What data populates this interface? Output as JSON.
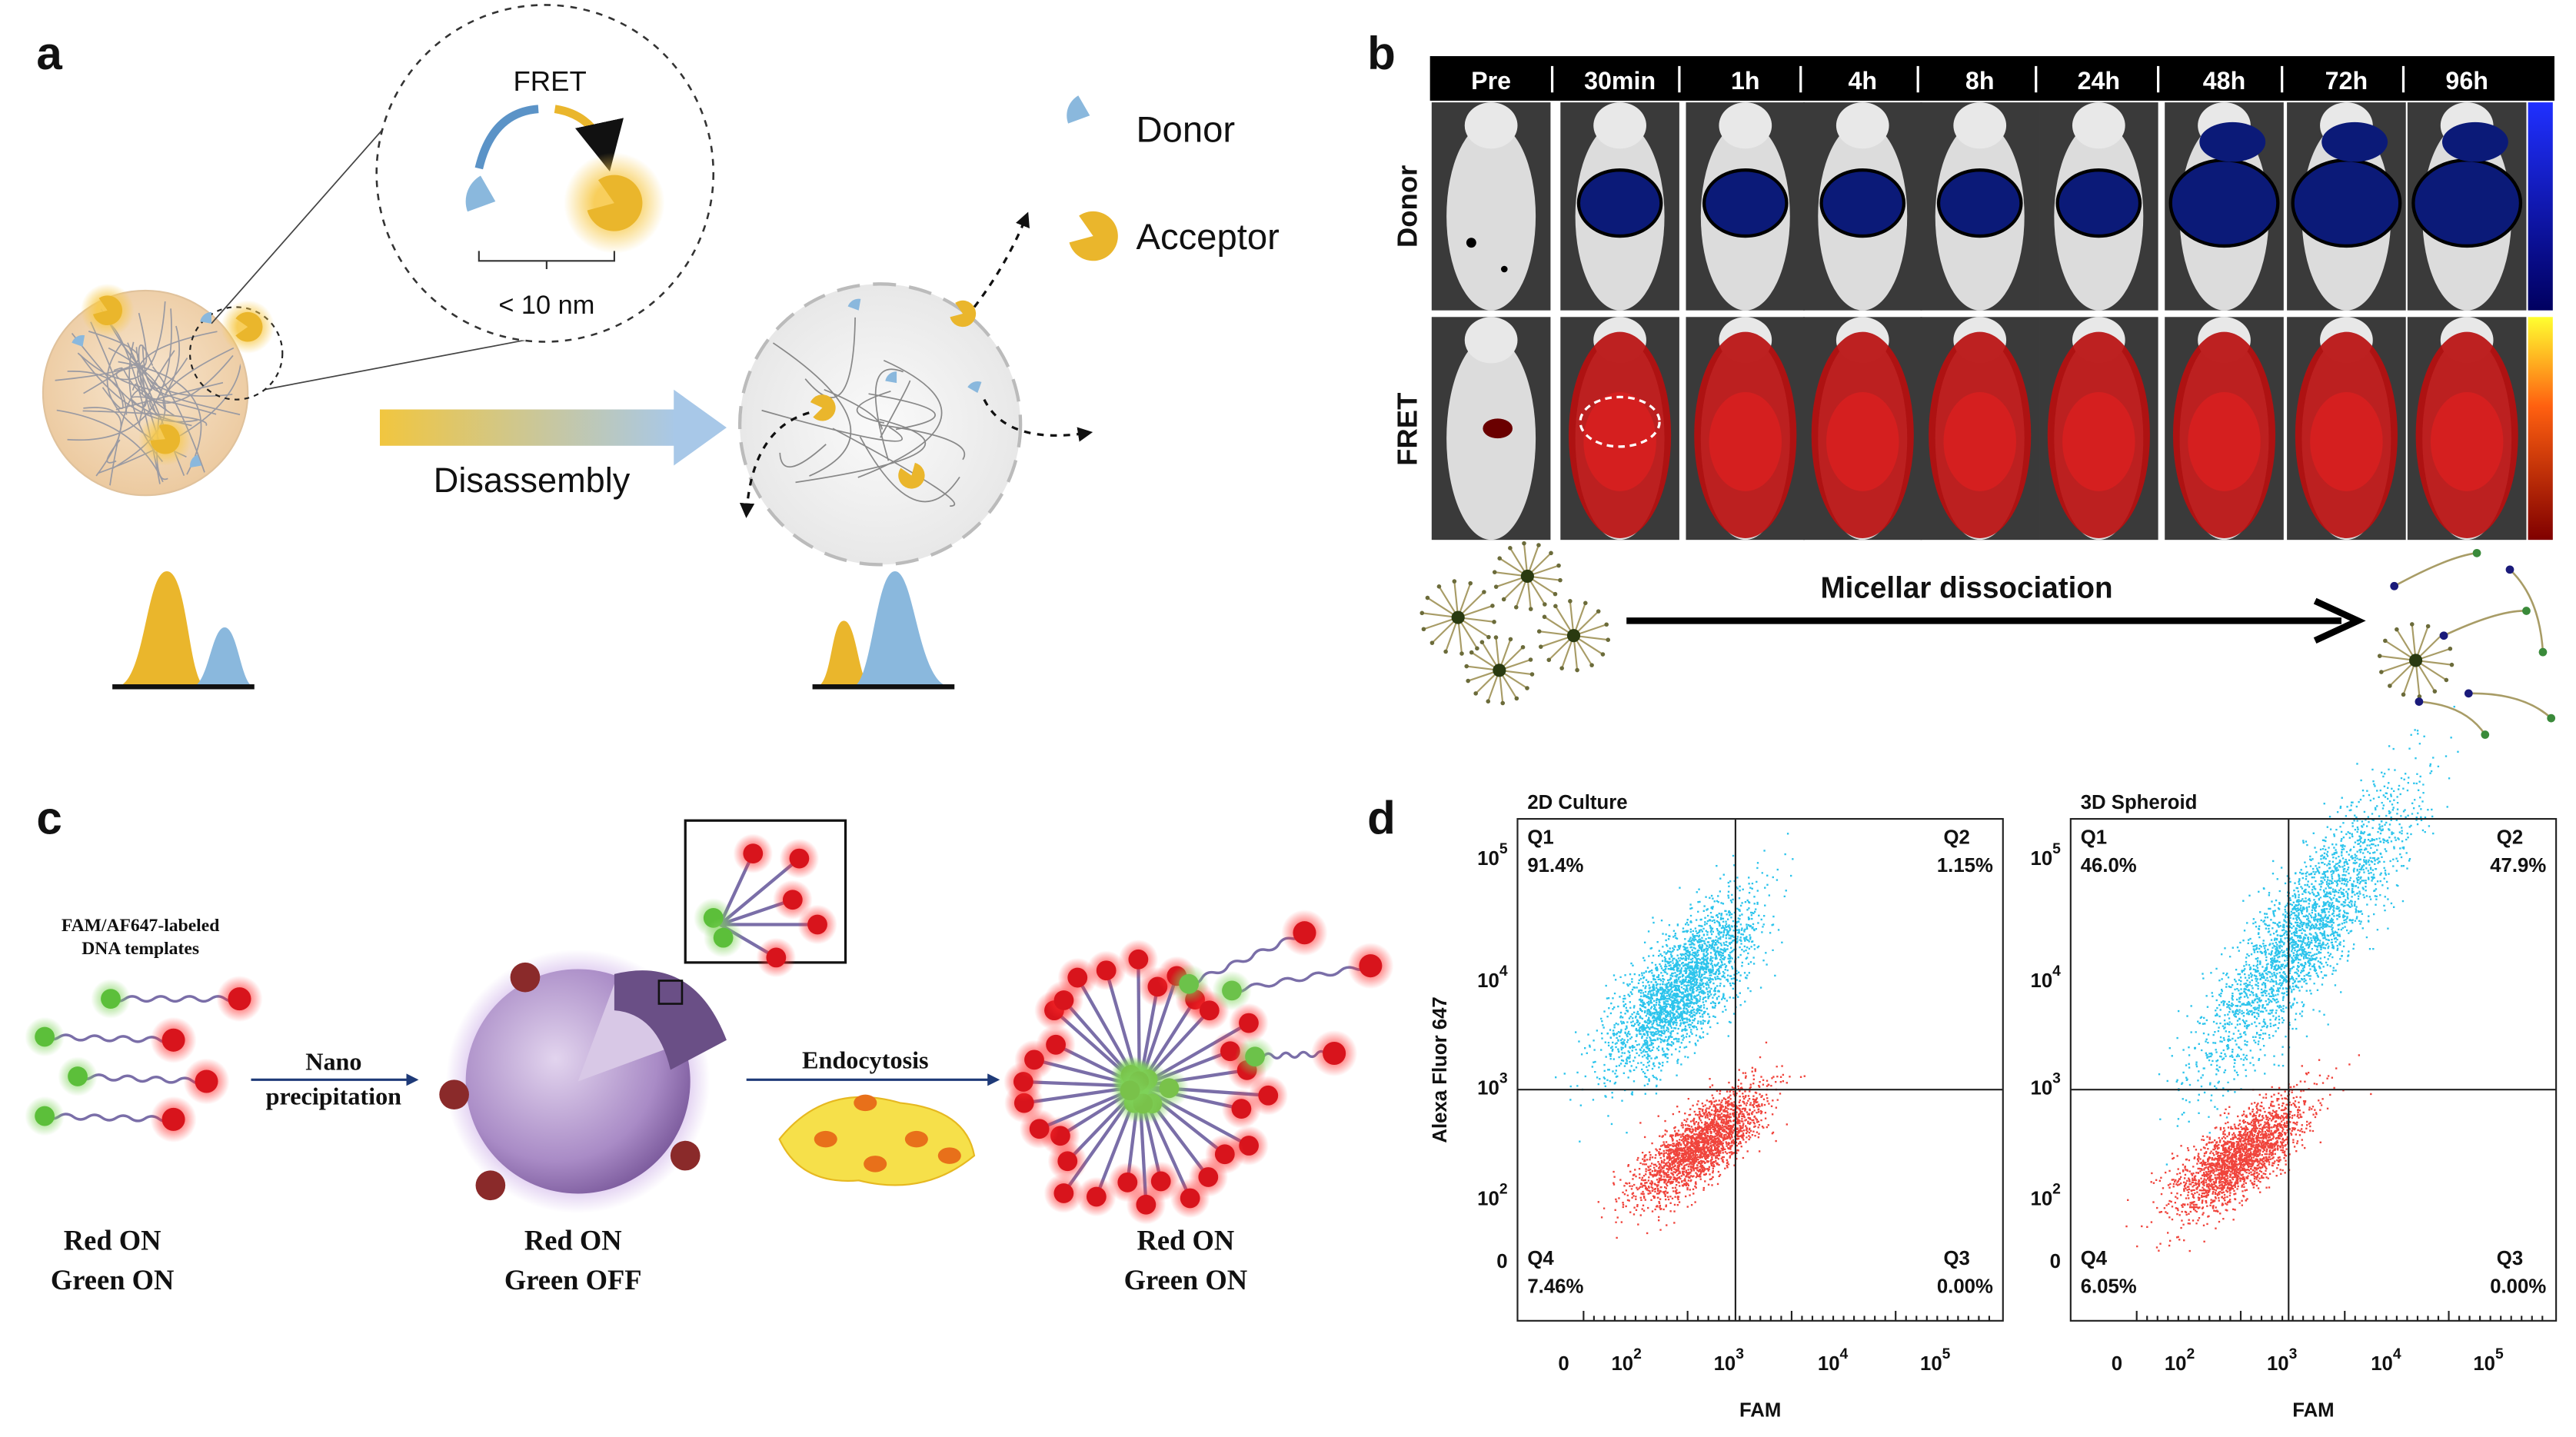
{
  "panel_a": {
    "label": "a",
    "fret": "FRET",
    "distance": "< 10 nm",
    "process": "Disassembly",
    "legend": {
      "donor": "Donor",
      "acceptor": "Acceptor"
    }
  },
  "panel_b": {
    "label": "b",
    "time_points": [
      "Pre",
      "30min",
      "1h",
      "4h",
      "8h",
      "24h",
      "48h",
      "72h",
      "96h"
    ],
    "rows": [
      "Donor",
      "FRET"
    ],
    "caption": "Micellar dissociation"
  },
  "panel_c": {
    "label": "c",
    "template_label": [
      "FAM/AF647-labeled",
      "DNA templates"
    ],
    "step1": [
      "Nano",
      "precipitation"
    ],
    "step2": "Endocytosis",
    "states": [
      {
        "red": "Red ON",
        "green": "Green ON"
      },
      {
        "red": "Red ON",
        "green": "Green OFF"
      },
      {
        "red": "Red ON",
        "green": "Green ON"
      }
    ]
  },
  "panel_d": {
    "label": "d",
    "plots": [
      {
        "title": "2D Culture",
        "x_axis": "FAM",
        "y_axis": "Alexa Fluor 647",
        "quadrants": [
          {
            "name": "Q1",
            "value": "91.4%"
          },
          {
            "name": "Q2",
            "value": "1.15%"
          },
          {
            "name": "Q4",
            "value": "7.46%"
          },
          {
            "name": "Q3",
            "value": "0.00%"
          }
        ],
        "x_ticks": [
          "0",
          {
            "base": "10",
            "exp": "2"
          },
          {
            "base": "10",
            "exp": "3"
          },
          {
            "base": "10",
            "exp": "4"
          },
          {
            "base": "10",
            "exp": "5"
          }
        ],
        "y_ticks": [
          {
            "base": "10",
            "exp": "5"
          },
          {
            "base": "10",
            "exp": "4"
          },
          {
            "base": "10",
            "exp": "3"
          },
          {
            "base": "10",
            "exp": "2"
          },
          "0"
        ]
      },
      {
        "title": "3D Spheroid",
        "x_axis": "FAM",
        "quadrants": [
          {
            "name": "Q1",
            "value": "46.0%"
          },
          {
            "name": "Q2",
            "value": "47.9%"
          },
          {
            "name": "Q4",
            "value": "6.05%"
          },
          {
            "name": "Q3",
            "value": "0.00%"
          }
        ],
        "x_ticks": [
          "0",
          {
            "base": "10",
            "exp": "2"
          },
          {
            "base": "10",
            "exp": "3"
          },
          {
            "base": "10",
            "exp": "4"
          },
          {
            "base": "10",
            "exp": "5"
          }
        ],
        "y_ticks": [
          {
            "base": "10",
            "exp": "5"
          },
          {
            "base": "10",
            "exp": "4"
          },
          {
            "base": "10",
            "exp": "3"
          },
          {
            "base": "10",
            "exp": "2"
          },
          "0"
        ]
      }
    ]
  }
}
